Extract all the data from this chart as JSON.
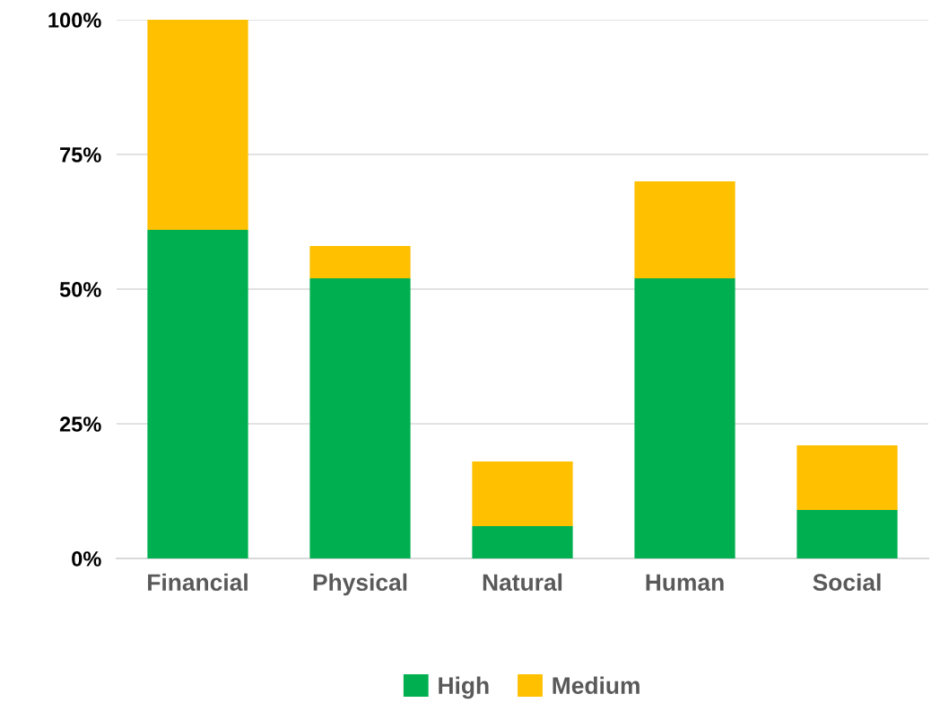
{
  "chart_data": {
    "type": "bar",
    "stacked": true,
    "categories": [
      "Financial",
      "Physical",
      "Natural",
      "Human",
      "Social"
    ],
    "series": [
      {
        "name": "High",
        "color": "#00b050",
        "values": [
          61,
          52,
          6,
          52,
          9
        ]
      },
      {
        "name": "Medium",
        "color": "#ffc000",
        "values": [
          39,
          6,
          12,
          18,
          12
        ]
      }
    ],
    "ylim": [
      0,
      100
    ],
    "yticks": [
      {
        "value": 0,
        "label": "0%"
      },
      {
        "value": 25,
        "label": "25%"
      },
      {
        "value": 50,
        "label": "50%"
      },
      {
        "value": 75,
        "label": "75%"
      },
      {
        "value": 100,
        "label": "100%"
      }
    ],
    "grid": "y",
    "legend": "bottom"
  }
}
